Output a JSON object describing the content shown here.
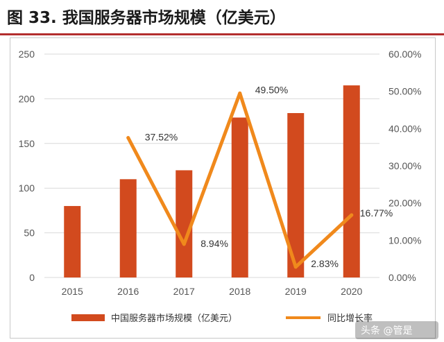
{
  "figure": {
    "title": "图 33. 我国服务器市场规模（亿美元）"
  },
  "chart_data": {
    "type": "bar",
    "categories": [
      "2015",
      "2016",
      "2017",
      "2018",
      "2019",
      "2020"
    ],
    "series": [
      {
        "name": "中国服务器市场规模（亿美元）",
        "type": "bar",
        "axis": "left",
        "values": [
          80,
          110,
          120,
          179,
          184,
          215
        ],
        "color": "#d24a1e"
      },
      {
        "name": "同比增长率",
        "type": "line",
        "axis": "right",
        "values": [
          null,
          37.52,
          8.94,
          49.5,
          2.83,
          16.77
        ],
        "labels": [
          "",
          "37.52%",
          "8.94%",
          "49.50%",
          "2.83%",
          "16.77%"
        ],
        "color": "#f0891c"
      }
    ],
    "y_left": {
      "min": 0,
      "max": 250,
      "ticks": [
        "0",
        "50",
        "100",
        "150",
        "200",
        "250"
      ]
    },
    "y_right": {
      "min": 0,
      "max": 60,
      "ticks": [
        "0.00%",
        "10.00%",
        "20.00%",
        "30.00%",
        "40.00%",
        "50.00%",
        "60.00%"
      ]
    },
    "grid": true,
    "legend_position": "bottom"
  },
  "watermark": {
    "text": "头条 @管是"
  }
}
